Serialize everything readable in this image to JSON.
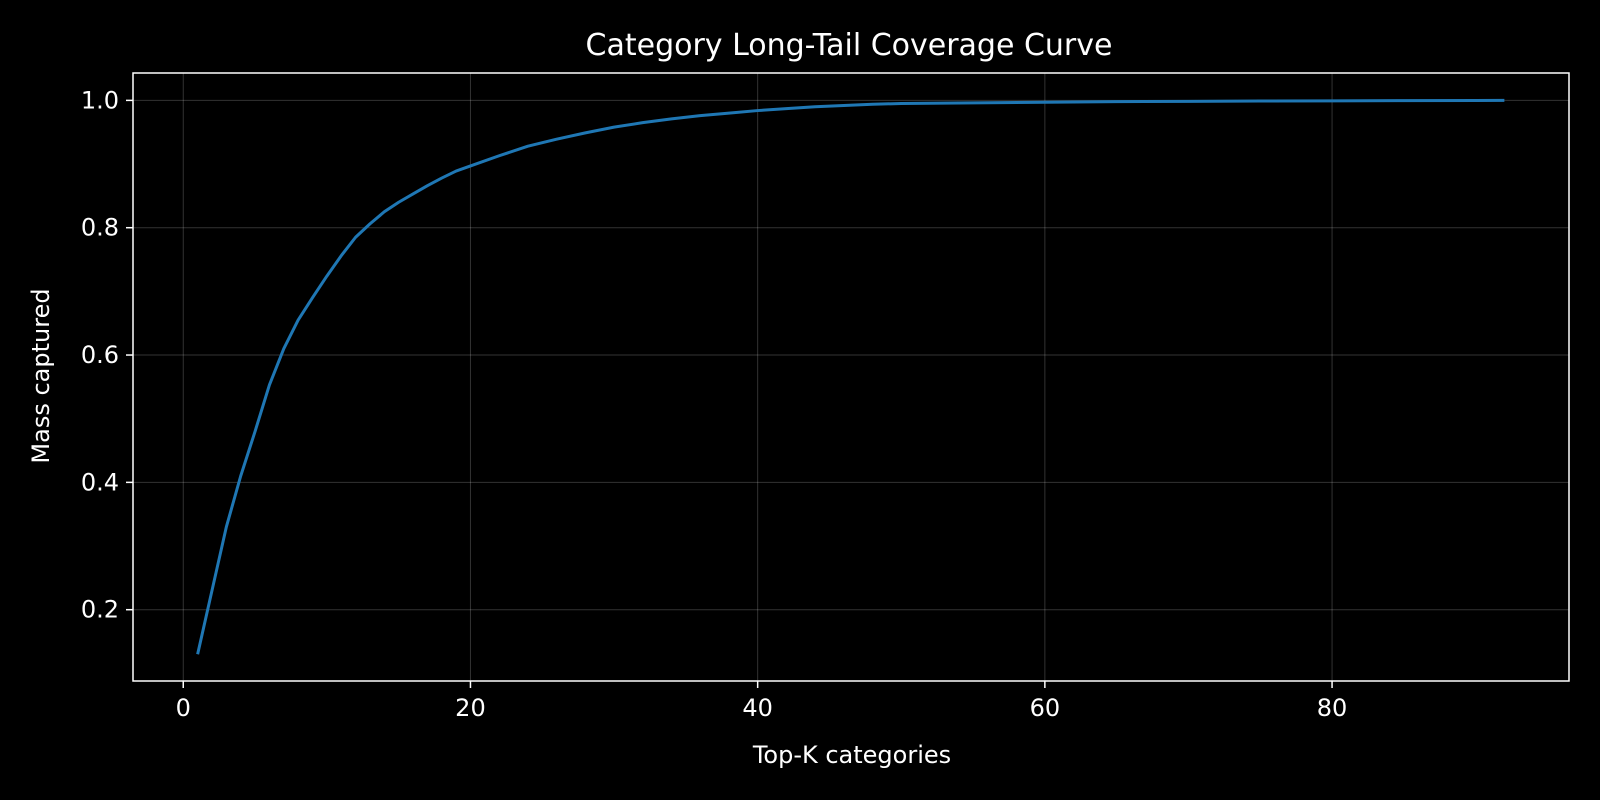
{
  "chart_data": {
    "type": "line",
    "title": "Category Long-Tail Coverage Curve",
    "xlabel": "Top-K categories",
    "ylabel": "Mass captured",
    "xlim": [
      -3.5,
      96.5
    ],
    "ylim": [
      0.088,
      1.043
    ],
    "x_ticks": [
      0,
      20,
      40,
      60,
      80
    ],
    "y_ticks": [
      0.2,
      0.4,
      0.6,
      0.8,
      1.0
    ],
    "x_tick_labels": [
      "0",
      "20",
      "40",
      "60",
      "80"
    ],
    "y_tick_labels": [
      "0.2",
      "0.4",
      "0.6",
      "0.8",
      "1.0"
    ],
    "grid": true,
    "background": "#000000",
    "foreground": "#ffffff",
    "series": [
      {
        "color": "#1f77b4",
        "x": [
          1,
          2,
          3,
          4,
          5,
          6,
          7,
          8,
          9,
          10,
          11,
          12,
          13,
          14,
          15,
          16,
          17,
          18,
          19,
          20,
          22,
          24,
          26,
          28,
          30,
          32,
          34,
          36,
          38,
          40,
          42,
          44,
          46,
          48,
          50,
          55,
          60,
          65,
          70,
          75,
          80,
          85,
          90,
          92
        ],
        "y": [
          0.13,
          0.23,
          0.33,
          0.41,
          0.48,
          0.553,
          0.61,
          0.655,
          0.69,
          0.724,
          0.756,
          0.785,
          0.806,
          0.825,
          0.84,
          0.853,
          0.866,
          0.878,
          0.889,
          0.897,
          0.913,
          0.928,
          0.939,
          0.949,
          0.958,
          0.965,
          0.971,
          0.976,
          0.98,
          0.984,
          0.987,
          0.99,
          0.992,
          0.994,
          0.995,
          0.996,
          0.997,
          0.998,
          0.9985,
          0.999,
          0.9993,
          0.9996,
          0.9998,
          1.0
        ]
      }
    ]
  }
}
